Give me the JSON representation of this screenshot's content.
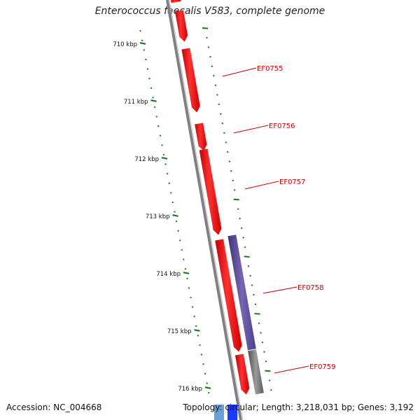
{
  "title": "Enterococcus faecalis V583, complete genome",
  "accession_text": "Accession: NC_004668",
  "summary_text": "Topology: circular; Length: 3,218,031 bp; Genes: 3,192",
  "colors": {
    "backbone": "#808080",
    "cds": "#ff0000",
    "gene_purple": "#5b4b9a",
    "gene_gray": "#707070",
    "tick": "#1a7a1a",
    "label": "#cc0000",
    "blue_feature": "#1a3aff",
    "lightblue_feature": "#6aa0d8"
  },
  "ticks": [
    {
      "label": "710 kbp"
    },
    {
      "label": "711 kbp"
    },
    {
      "label": "712 kbp"
    },
    {
      "label": "713 kbp"
    },
    {
      "label": "714 kbp"
    },
    {
      "label": "715 kbp"
    },
    {
      "label": "716 kbp"
    }
  ],
  "genes": [
    {
      "label": "EF0755"
    },
    {
      "label": "EF0756"
    },
    {
      "label": "EF0757"
    },
    {
      "label": "EF0758"
    },
    {
      "label": "EF0759"
    }
  ]
}
